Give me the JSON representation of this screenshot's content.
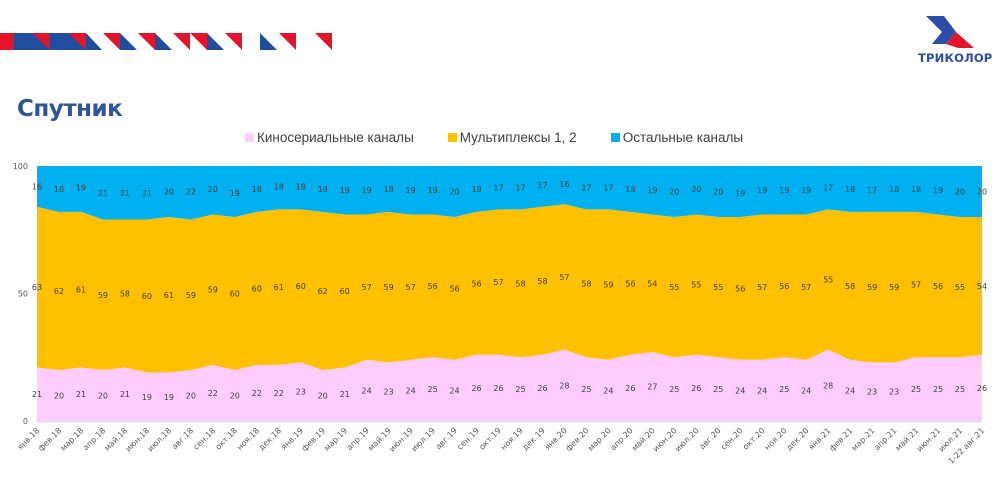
{
  "header": {
    "brand_name": "ТРИКОЛОР",
    "title": "Спутник"
  },
  "colors": {
    "accent_blue": "#1f4e9e",
    "accent_red": "#e4142a",
    "title": "#2f5597"
  },
  "chart_data": {
    "type": "area",
    "stacked": true,
    "title": "Спутник",
    "xlabel": "",
    "ylabel": "",
    "ylim": [
      0,
      100
    ],
    "yticks": [
      "0",
      "50",
      "100"
    ],
    "legend_position": "top",
    "grid": false,
    "categories": [
      "янв.18",
      "фев.18",
      "мар.18",
      "апр.18",
      "май.18",
      "июн.18",
      "июл.18",
      "авг.18",
      "сен.18",
      "окт.18",
      "ноя.18",
      "дек.18",
      "янв.19",
      "фев.19",
      "мар.19",
      "апр.19",
      "май.19",
      "июн.19",
      "июл.19",
      "авг.19",
      "сен.19",
      "окт.19",
      "ноя.19",
      "дек.19",
      "янв.20",
      "фев.20",
      "мар.20",
      "апр.20",
      "май.20",
      "июн.20",
      "июл.20",
      "авг.20",
      "сен.20",
      "окт.20",
      "ноя.20",
      "дек.20",
      "янв.21",
      "фев.21",
      "мар.21",
      "апр.21",
      "май.21",
      "июн.21",
      "июл.21",
      "1-22 авг.21"
    ],
    "series": [
      {
        "name": "Киносериальные каналы",
        "color": "#ffccff",
        "values": [
          21,
          20,
          21,
          20,
          21,
          19,
          19,
          20,
          22,
          20,
          22,
          22,
          23,
          20,
          21,
          24,
          23,
          24,
          25,
          24,
          26,
          26,
          25,
          26,
          28,
          25,
          24,
          26,
          27,
          25,
          26,
          25,
          24,
          24,
          25,
          24,
          28,
          24,
          23,
          23,
          25,
          25,
          25,
          26
        ]
      },
      {
        "name": "Мультиплексы 1, 2",
        "color": "#ffc000",
        "values": [
          63,
          62,
          61,
          59,
          58,
          60,
          61,
          59,
          59,
          60,
          60,
          61,
          60,
          62,
          60,
          57,
          59,
          57,
          56,
          56,
          56,
          57,
          58,
          58,
          57,
          58,
          59,
          56,
          54,
          55,
          55,
          55,
          56,
          57,
          56,
          57,
          55,
          58,
          59,
          59,
          57,
          56,
          55,
          54
        ]
      },
      {
        "name": "Остальные каналы",
        "color": "#00b0f0",
        "values": [
          16,
          18,
          19,
          21,
          21,
          21,
          20,
          22,
          20,
          19,
          18,
          18,
          18,
          18,
          19,
          19,
          18,
          19,
          19,
          20,
          18,
          17,
          17,
          17,
          16,
          17,
          17,
          18,
          19,
          20,
          20,
          20,
          19,
          19,
          19,
          19,
          17,
          18,
          17,
          18,
          18,
          19,
          20,
          20
        ]
      }
    ]
  }
}
